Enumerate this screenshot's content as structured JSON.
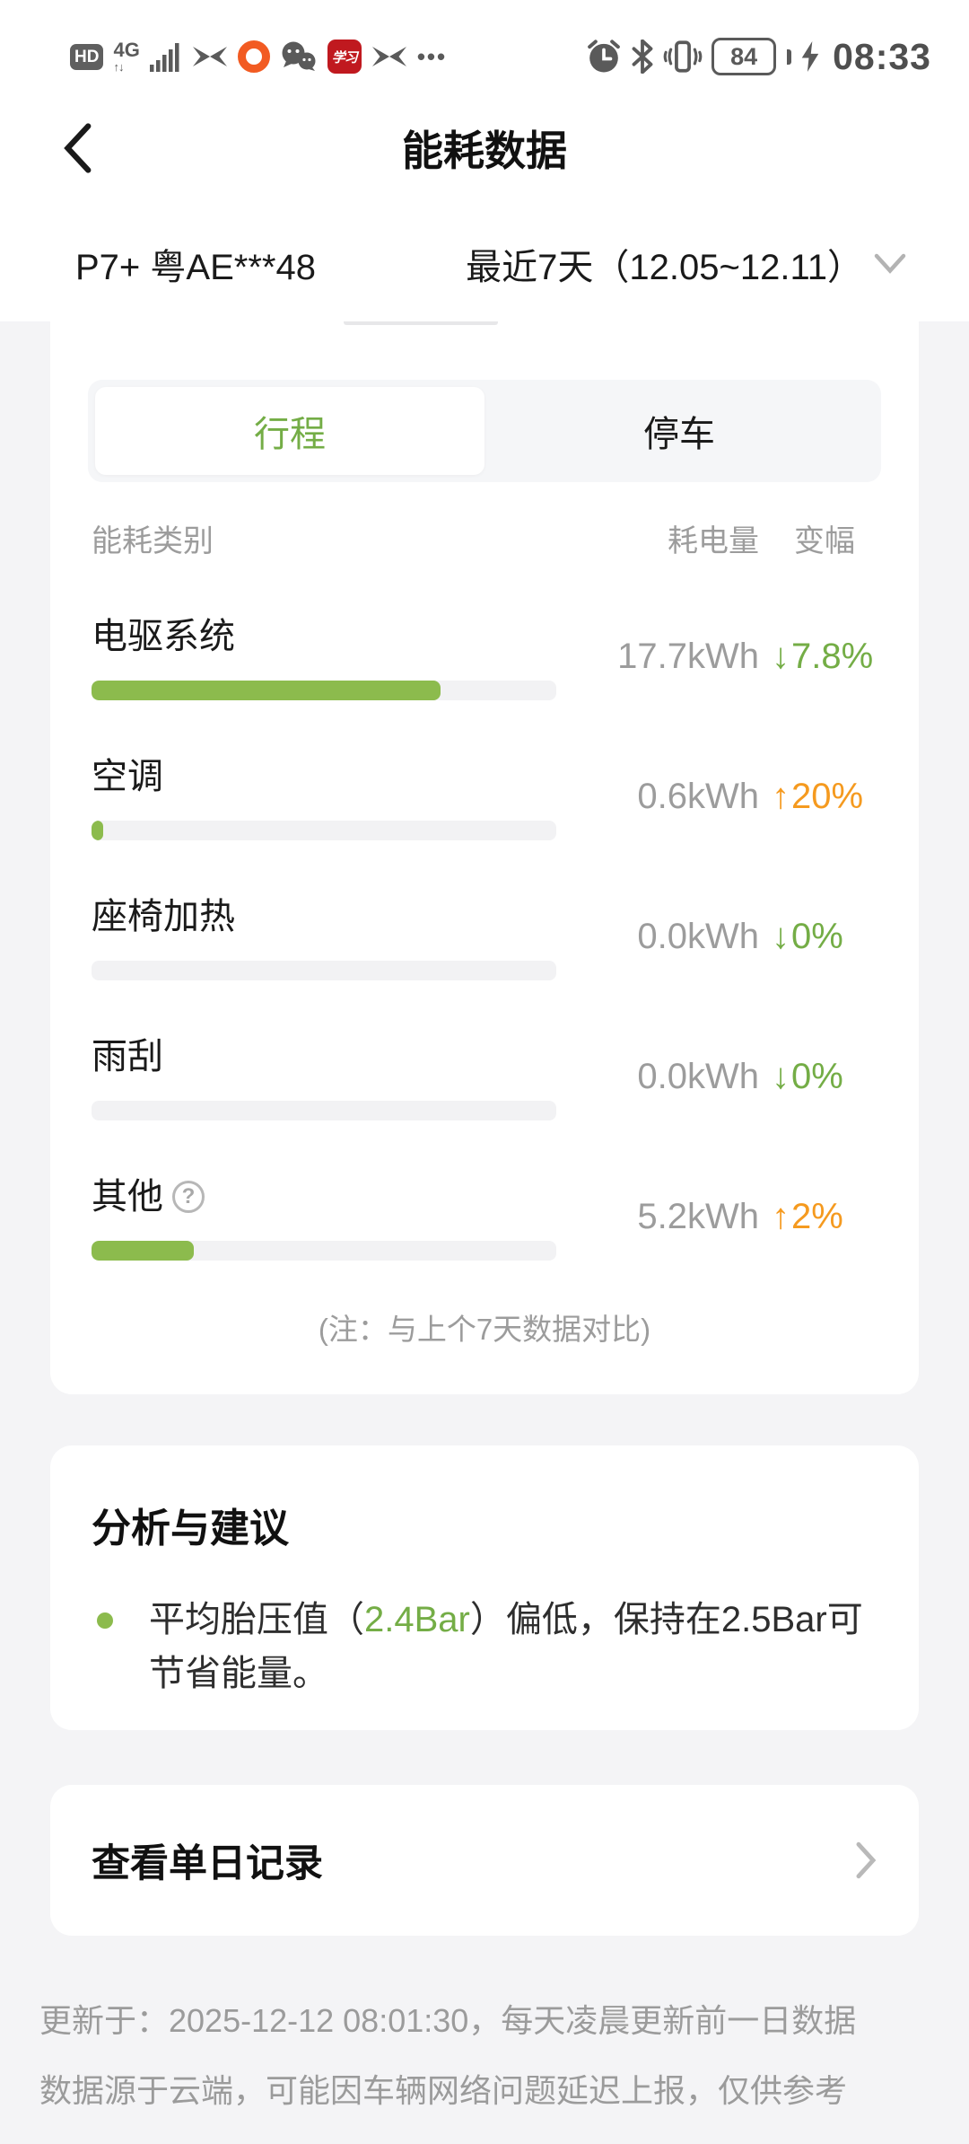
{
  "colors": {
    "green": "#74ad46",
    "bar_green": "#8cbb4d",
    "orange": "#f59a1f",
    "gray_text": "#9c9c9c"
  },
  "status_bar": {
    "hd": "HD",
    "network": "4G",
    "network_arrows": "↑↓",
    "app_badge_label": "学习",
    "more": "•••",
    "battery_level": "84",
    "time": "08:33"
  },
  "nav": {
    "title": "能耗数据"
  },
  "vehicle_bar": {
    "vehicle": "P7+ 粤AE***48",
    "date_range": "最近7天（12.05~12.11）"
  },
  "energy_card": {
    "tabs": [
      {
        "label": "行程",
        "active": true
      },
      {
        "label": "停车",
        "active": false
      }
    ],
    "table_header": {
      "category": "能耗类别",
      "consumption": "耗电量",
      "change": "变幅"
    },
    "rows": [
      {
        "label": "电驱系统",
        "value": "17.7kWh",
        "bar_percent": 75,
        "trend": "down",
        "change": "7.8%",
        "has_help_icon": false
      },
      {
        "label": "空调",
        "value": "0.6kWh",
        "bar_percent": 2.5,
        "trend": "up",
        "change": "20%",
        "has_help_icon": false
      },
      {
        "label": "座椅加热",
        "value": "0.0kWh",
        "bar_percent": 0,
        "trend": "down",
        "change": "0%",
        "has_help_icon": false
      },
      {
        "label": "雨刮",
        "value": "0.0kWh",
        "bar_percent": 0,
        "trend": "down",
        "change": "0%",
        "has_help_icon": false
      },
      {
        "label": "其他",
        "value": "5.2kWh",
        "bar_percent": 22,
        "trend": "up",
        "change": "2%",
        "has_help_icon": true
      }
    ],
    "note": "(注：与上个7天数据对比)"
  },
  "analysis_card": {
    "title": "分析与建议",
    "suggestions": [
      {
        "prefix": "平均胎压值（",
        "highlight": "2.4Bar",
        "suffix": "）偏低，保持在2.5Bar可节省能量。"
      }
    ]
  },
  "daily_record_card": {
    "title": "查看单日记录"
  },
  "footer": {
    "line1": "更新于：2025-12-12 08:01:30，每天凌晨更新前一日数据",
    "line2": "数据源于云端，可能因车辆网络问题延迟上报，仅供参考"
  },
  "chart_data": {
    "type": "bar",
    "title": "能耗数据 - 行程 (最近7天 12.05~12.11)",
    "categories": [
      "电驱系统",
      "空调",
      "座椅加热",
      "雨刮",
      "其他"
    ],
    "values_kwh": [
      17.7,
      0.6,
      0.0,
      0.0,
      5.2
    ],
    "change_vs_previous_7_days": [
      "-7.8%",
      "+20%",
      "-0%",
      "-0%",
      "+2%"
    ],
    "bar_fill_percent": [
      75,
      2.5,
      0,
      0,
      22
    ],
    "ylabel": "耗电量 (kWh)"
  }
}
